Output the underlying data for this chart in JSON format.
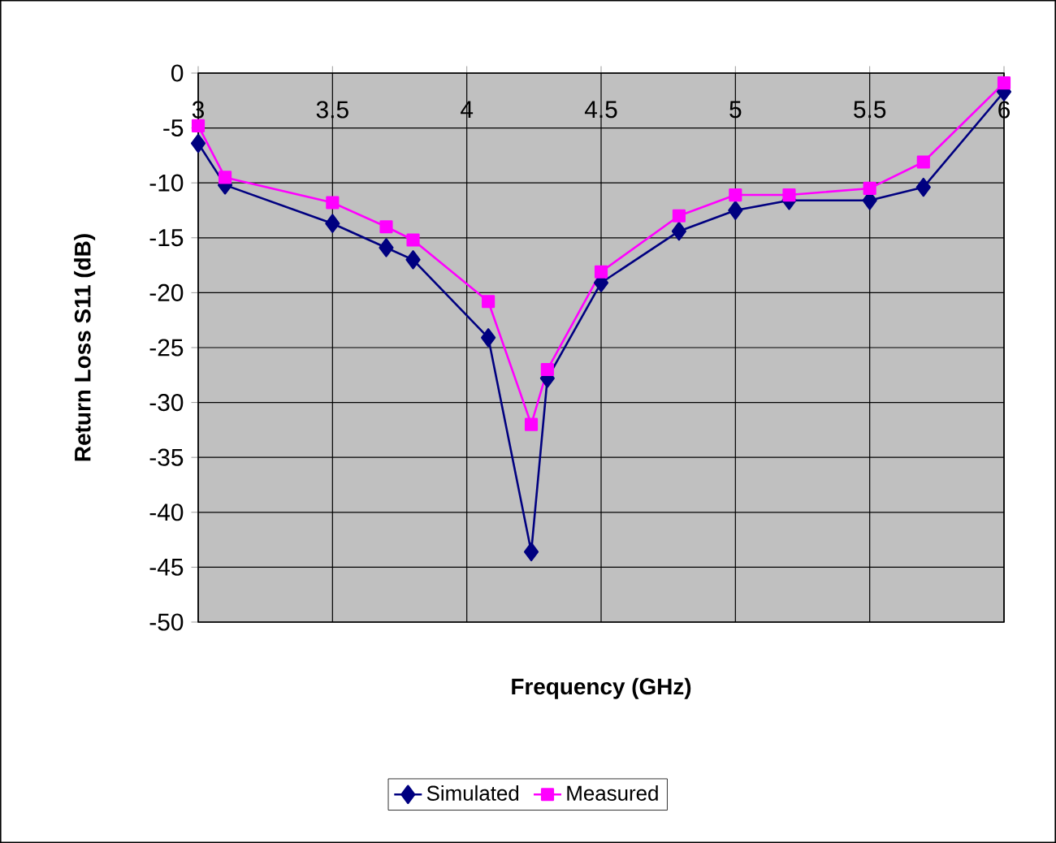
{
  "chart_data": {
    "type": "line",
    "xlabel": "Frequency (GHz)",
    "ylabel": "Return Loss S11 (dB)",
    "xlim": [
      3,
      6
    ],
    "xticks": [
      3,
      3.5,
      4,
      4.5,
      5,
      5.5,
      6
    ],
    "ylim": [
      -50,
      0
    ],
    "yticks": [
      -50,
      -45,
      -40,
      -35,
      -30,
      -25,
      -20,
      -15,
      -10,
      -5,
      0
    ],
    "grid": true,
    "legend": "bottom",
    "series": [
      {
        "name": "Simulated",
        "color": "#000080",
        "marker": "diamond",
        "x": [
          3,
          3.1,
          3.5,
          3.7,
          3.8,
          4.08,
          4.24,
          4.3,
          4.5,
          4.79,
          5.0,
          5.2,
          5.5,
          5.7,
          6
        ],
        "values": [
          -6.4,
          -10.2,
          -13.7,
          -15.9,
          -17.0,
          -24.1,
          -43.6,
          -27.8,
          -19.1,
          -14.4,
          -12.5,
          -11.6,
          -11.6,
          -10.4,
          -1.7
        ]
      },
      {
        "name": "Measured",
        "color": "#ff00ff",
        "marker": "square",
        "x": [
          3,
          3.1,
          3.5,
          3.7,
          3.8,
          4.08,
          4.24,
          4.3,
          4.5,
          4.79,
          5.0,
          5.2,
          5.5,
          5.7,
          6
        ],
        "values": [
          -4.8,
          -9.5,
          -11.8,
          -14.0,
          -15.2,
          -20.8,
          -32.0,
          -27.0,
          -18.1,
          -13.0,
          -11.1,
          -11.1,
          -10.5,
          -8.1,
          -0.9
        ]
      }
    ]
  }
}
